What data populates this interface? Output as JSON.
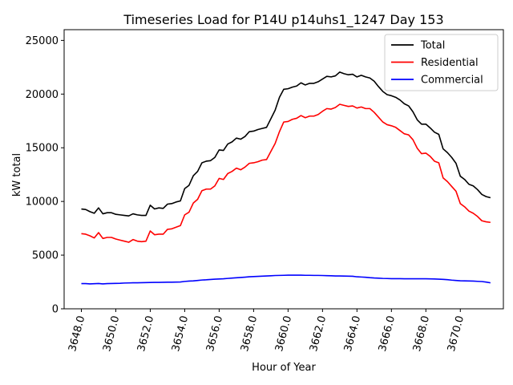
{
  "chart_data": {
    "type": "line",
    "title": "Timeseries Load for P14U p14uhs1_1247  Day 153",
    "xlabel": "Hour of Year",
    "ylabel": "kW total",
    "xlim": [
      3647.0,
      3672.5
    ],
    "ylim": [
      0,
      26000
    ],
    "xticks": [
      3648,
      3650,
      3652,
      3654,
      3656,
      3658,
      3660,
      3662,
      3664,
      3666,
      3668,
      3670
    ],
    "xtick_labels": [
      "3648.0",
      "3650.0",
      "3652.0",
      "3654.0",
      "3656.0",
      "3658.0",
      "3660.0",
      "3662.0",
      "3664.0",
      "3666.0",
      "3668.0",
      "3670.0"
    ],
    "yticks": [
      0,
      5000,
      10000,
      15000,
      20000,
      25000
    ],
    "ytick_labels": [
      "0",
      "5000",
      "10000",
      "15000",
      "20000",
      "25000"
    ],
    "grid": false,
    "legend_position": "top-right",
    "x_start": 3648.0,
    "x_step": 0.25,
    "series": [
      {
        "name": "Total",
        "color": "#000000",
        "values": [
          9300,
          9250,
          9050,
          8900,
          9400,
          8850,
          8950,
          8950,
          8800,
          8750,
          8700,
          8650,
          8850,
          8750,
          8700,
          8700,
          9650,
          9300,
          9400,
          9350,
          9750,
          9800,
          9950,
          10050,
          11200,
          11500,
          12400,
          12800,
          13600,
          13750,
          13800,
          14100,
          14800,
          14750,
          15350,
          15550,
          15900,
          15800,
          16050,
          16500,
          16550,
          16700,
          16800,
          16900,
          17700,
          18500,
          19700,
          20450,
          20500,
          20650,
          20750,
          21050,
          20850,
          21000,
          21000,
          21150,
          21400,
          21650,
          21600,
          21700,
          22050,
          21900,
          21800,
          21850,
          21600,
          21750,
          21600,
          21500,
          21200,
          20700,
          20250,
          19950,
          19850,
          19700,
          19450,
          19100,
          18900,
          18350,
          17600,
          17200,
          17200,
          16850,
          16450,
          16250,
          14900,
          14550,
          14100,
          13550,
          12350,
          12050,
          11600,
          11450,
          11100,
          10650,
          10450,
          10350
        ]
      },
      {
        "name": "Residential",
        "color": "#ff0000",
        "values": [
          7000,
          6950,
          6800,
          6600,
          7100,
          6550,
          6650,
          6650,
          6500,
          6400,
          6300,
          6200,
          6450,
          6300,
          6250,
          6300,
          7250,
          6900,
          6950,
          6950,
          7400,
          7450,
          7600,
          7750,
          8750,
          9000,
          9850,
          10200,
          11000,
          11150,
          11150,
          11450,
          12150,
          12050,
          12600,
          12800,
          13100,
          12950,
          13200,
          13550,
          13600,
          13700,
          13850,
          13900,
          14650,
          15400,
          16500,
          17400,
          17450,
          17650,
          17750,
          18000,
          17800,
          17950,
          17950,
          18100,
          18400,
          18650,
          18600,
          18750,
          19050,
          18950,
          18850,
          18900,
          18700,
          18800,
          18650,
          18650,
          18300,
          17850,
          17400,
          17150,
          17050,
          16900,
          16600,
          16300,
          16200,
          15750,
          14950,
          14450,
          14500,
          14200,
          13750,
          13600,
          12200,
          11850,
          11400,
          10950,
          9800,
          9500,
          9100,
          8900,
          8600,
          8200,
          8100,
          8050
        ]
      },
      {
        "name": "Commercial",
        "color": "#0000ff",
        "values": [
          2350,
          2350,
          2320,
          2340,
          2360,
          2320,
          2350,
          2360,
          2370,
          2380,
          2400,
          2410,
          2420,
          2420,
          2430,
          2440,
          2450,
          2460,
          2460,
          2470,
          2480,
          2480,
          2490,
          2500,
          2550,
          2580,
          2600,
          2640,
          2680,
          2700,
          2730,
          2760,
          2780,
          2800,
          2830,
          2860,
          2890,
          2920,
          2950,
          2980,
          3000,
          3020,
          3040,
          3060,
          3080,
          3100,
          3110,
          3120,
          3130,
          3130,
          3130,
          3130,
          3120,
          3120,
          3110,
          3110,
          3100,
          3090,
          3080,
          3060,
          3060,
          3050,
          3040,
          3030,
          2980,
          2960,
          2940,
          2900,
          2870,
          2850,
          2830,
          2820,
          2810,
          2810,
          2810,
          2800,
          2800,
          2800,
          2800,
          2800,
          2800,
          2790,
          2780,
          2760,
          2740,
          2710,
          2670,
          2640,
          2610,
          2600,
          2590,
          2580,
          2560,
          2540,
          2490,
          2420
        ]
      }
    ]
  }
}
